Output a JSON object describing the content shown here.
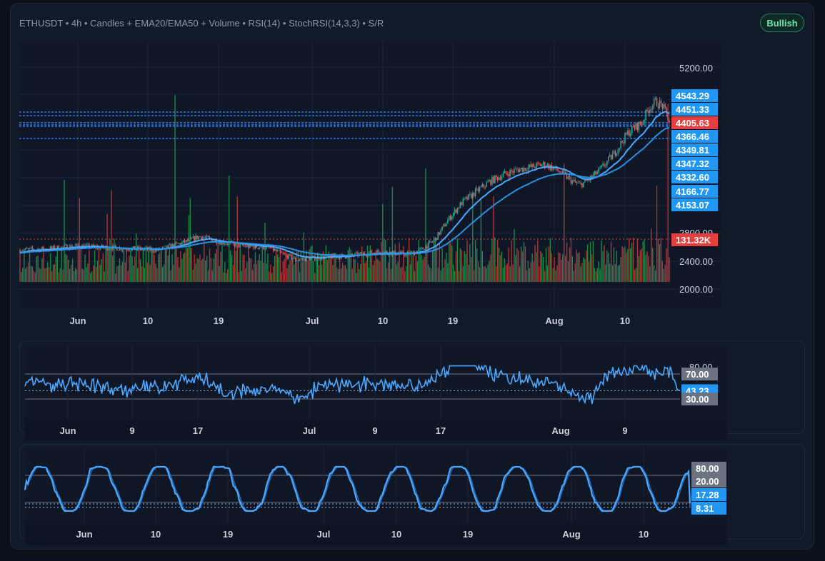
{
  "header": {
    "title": "ETHUSDT • 4h • Candles + EMA20/EMA50 + Volume • RSI(14) • StochRSI(14,3,3) • S/R",
    "badge": "Bullish"
  },
  "colors": {
    "background": "#111a28",
    "up": "#26a69a",
    "up_volume": "#1f9a4d",
    "down": "#ef5350",
    "down_volume": "#c8393a",
    "ema20": "#4aa8ff",
    "ema50": "#2b8fe0",
    "support_resistance": "#2f8cff",
    "price_tag": "#e53e3e",
    "level_tag": "#2196f3",
    "threshold_tag": "#6b7280"
  },
  "chart_data": [
    {
      "type": "candlestick",
      "name": "price",
      "y_ticks": [
        "5200.00",
        "2400.00",
        "2000.00"
      ],
      "y_ticks_partial": [
        "2800.00"
      ],
      "ylim": [
        1800,
        5600
      ],
      "x_ticks": [
        "Jun",
        "10",
        "19",
        "Jul",
        "10",
        "19",
        "Aug",
        "10"
      ],
      "x_range_days": [
        0,
        79
      ],
      "last_price": "4405.63",
      "volume_last": "131.32K",
      "support_resistance_levels": [
        "4543.29",
        "4451.33",
        "4366.46",
        "4349.81",
        "4347.32",
        "4332.60",
        "4166.77",
        "4153.07"
      ],
      "close_path": [
        [
          0,
          2560
        ],
        [
          4,
          2580
        ],
        [
          8,
          2620
        ],
        [
          12,
          2600
        ],
        [
          16,
          2580
        ],
        [
          20,
          2560
        ],
        [
          24,
          2680
        ],
        [
          26,
          2760
        ],
        [
          28,
          2700
        ],
        [
          32,
          2620
        ],
        [
          36,
          2600
        ],
        [
          38,
          2500
        ],
        [
          40,
          2420
        ],
        [
          44,
          2460
        ],
        [
          48,
          2480
        ],
        [
          52,
          2540
        ],
        [
          56,
          2500
        ],
        [
          58,
          2560
        ],
        [
          60,
          2700
        ],
        [
          61,
          2850
        ],
        [
          62,
          3000
        ],
        [
          64,
          3250
        ],
        [
          66,
          3400
        ],
        [
          68,
          3550
        ],
        [
          70,
          3650
        ],
        [
          72,
          3720
        ],
        [
          74,
          3760
        ],
        [
          76,
          3800
        ],
        [
          78,
          3700
        ],
        [
          80,
          3550
        ],
        [
          81,
          3500
        ],
        [
          82,
          3550
        ],
        [
          84,
          3720
        ],
        [
          86,
          3950
        ],
        [
          88,
          4250
        ],
        [
          90,
          4400
        ],
        [
          91,
          4600
        ],
        [
          92,
          4700
        ],
        [
          93,
          4640
        ],
        [
          94,
          4420
        ]
      ]
    },
    {
      "type": "line",
      "name": "rsi",
      "y_ticks": [
        "70.00",
        "30.00"
      ],
      "y_ticks_partial": [
        "80.00"
      ],
      "ylim": [
        10,
        90
      ],
      "x_ticks": [
        "Jun",
        "9",
        "17",
        "Jul",
        "9",
        "17",
        "Aug",
        "9"
      ],
      "last_value": "43.23",
      "thresholds": [
        70,
        30
      ]
    },
    {
      "type": "line",
      "name": "stochrsi",
      "y_ticks": [
        "80.00",
        "20.00"
      ],
      "ylim": [
        -10,
        110
      ],
      "x_ticks": [
        "Jun",
        "10",
        "19",
        "Jul",
        "10",
        "19",
        "Aug",
        "10"
      ],
      "last_values": [
        "17.28",
        "8.31"
      ],
      "thresholds": [
        80,
        20
      ]
    }
  ]
}
